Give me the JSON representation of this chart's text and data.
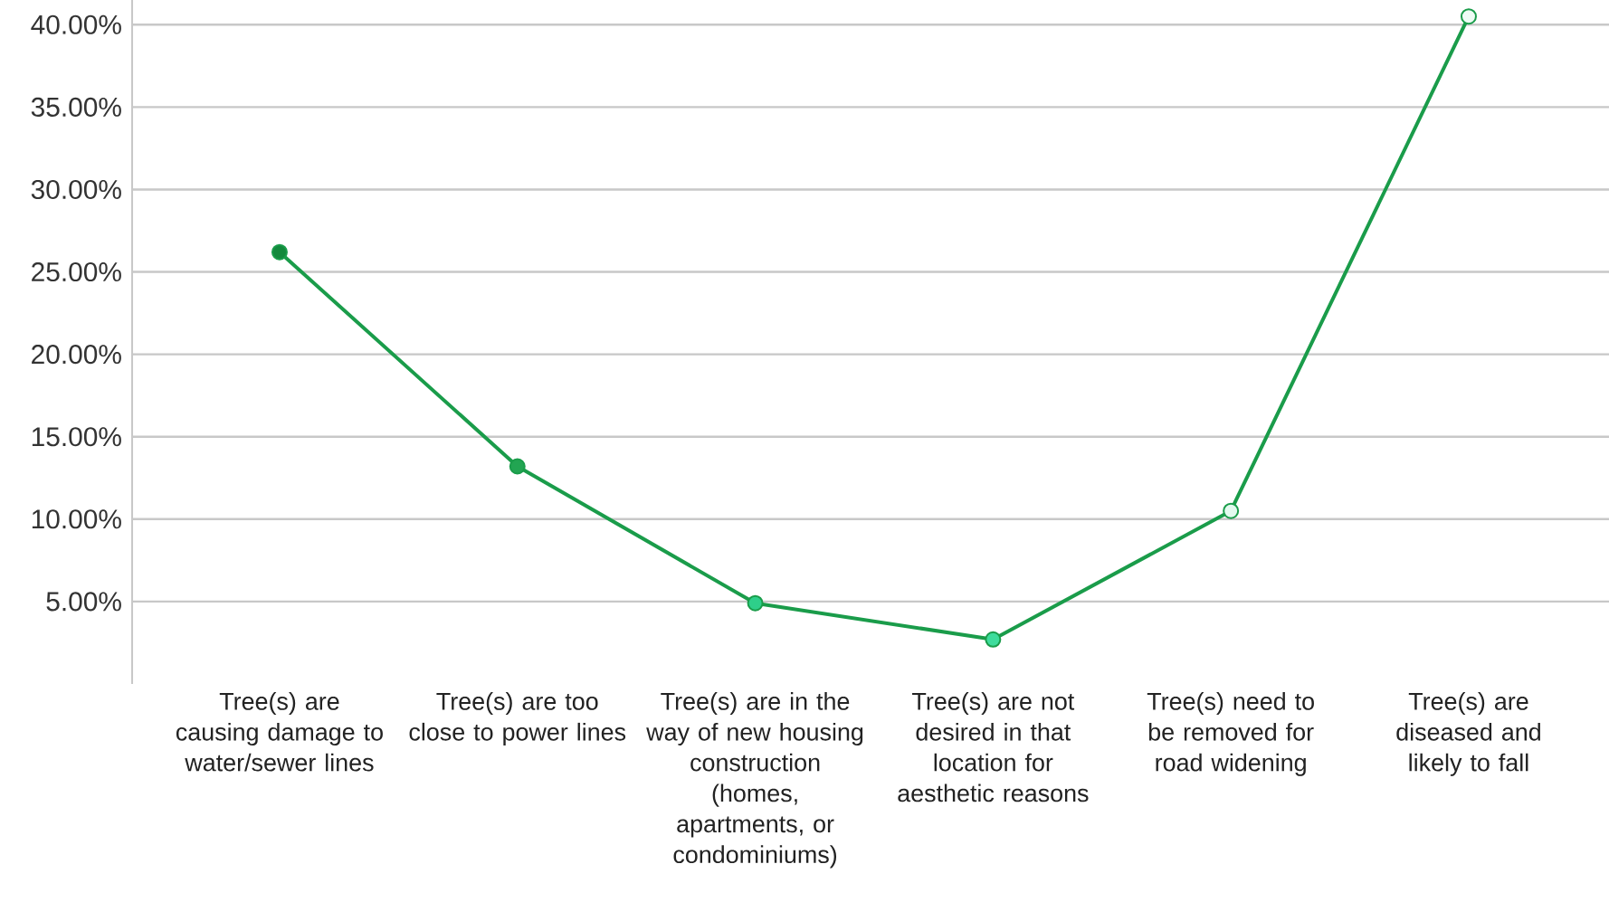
{
  "chart_data": {
    "type": "line",
    "categories": [
      "Tree(s) are causing damage to water/sewer lines",
      "Tree(s) are too close to power lines",
      "Tree(s) are in the way of new housing construction (homes, apartments, or condominiums)",
      "Tree(s) are not desired in that location for aesthetic reasons",
      "Tree(s) need to be removed for road widening",
      "Tree(s) are diseased and likely to fall"
    ],
    "series": [
      {
        "color": "#1a9c4a",
        "values": [
          26.2,
          13.2,
          4.9,
          2.7,
          10.5,
          40.5
        ],
        "colors": [
          "#13893c",
          "#22a552",
          "#2ecf8a",
          "#3edc9c",
          "#e3faef",
          "#eefcf5"
        ]
      }
    ],
    "yticks": [
      {
        "value": 5,
        "label": "5.00%"
      },
      {
        "value": 10,
        "label": "10.00%"
      },
      {
        "value": 15,
        "label": "15.00%"
      },
      {
        "value": 20,
        "label": "20.00%"
      },
      {
        "value": 25,
        "label": "25.00%"
      },
      {
        "value": 30,
        "label": "30.00%"
      },
      {
        "value": 35,
        "label": "35.00%"
      },
      {
        "value": 40,
        "label": "40.00%"
      }
    ],
    "ylim": [
      0,
      41.5
    ],
    "grid": "y",
    "marker": "circle",
    "line_style": "solid"
  }
}
